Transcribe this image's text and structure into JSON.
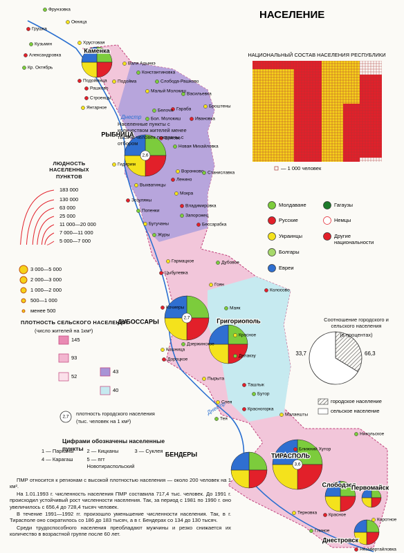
{
  "title": "НАСЕЛЕНИЕ",
  "national_composition": {
    "title": "НАЦИОНАЛЬНЫЙ СОСТАВ НАСЕЛЕНИЯ РЕСПУБЛИКИ",
    "unit_label": "— 1 000 человек"
  },
  "nationalities": [
    {
      "label": "Молдаване",
      "color": "#7ccc3c"
    },
    {
      "label": "Русские",
      "color": "#e2202a"
    },
    {
      "label": "Украинцы",
      "color": "#f4e21c"
    },
    {
      "label": "Болгары",
      "color": "#a6d86a"
    },
    {
      "label": "Евреи",
      "color": "#2f6fd0"
    },
    {
      "label": "Гагаузы",
      "color": "#1d7a2a"
    },
    {
      "label": "Немцы",
      "color": "#ffffff"
    },
    {
      "label": "Другие национальности",
      "color": "#e2202a"
    }
  ],
  "urban_rural": {
    "title": "Соотношение городского и сельского населения",
    "subtitle": "(в процентах)",
    "values": [
      33.7,
      66.3
    ],
    "value_labels": [
      "33,7",
      "66,3"
    ],
    "legend": [
      "городское население",
      "сельское население"
    ]
  },
  "settlement_size": {
    "title": "ЛЮДНОСТЬ НАСЕЛЕННЫХ ПУНКТОВ",
    "large": [
      "183 000",
      "130 000",
      "63 000",
      "25 000",
      "11 000—20 000",
      "7 000—11 000",
      "5 000—7 000"
    ],
    "small": [
      "3 000—5 000",
      "2 000—3 000",
      "1 000—2 000",
      "500—1 000",
      "менее 500"
    ]
  },
  "density": {
    "title": "ПЛОТНОСТЬ СЕЛЬСКОГО НАСЕЛЕНИЯ",
    "subtitle": "(число жителей на 1км²)",
    "classes": [
      145,
      93,
      52,
      43,
      40
    ],
    "urban_example": "2,7",
    "urban_label": "плотность городского населения",
    "urban_subtitle": "(тыс. человек на 1 км²)"
  },
  "numbered": {
    "title": "Цифрами обозначены населенные пункты",
    "items": [
      "1 — Парканы",
      "2 — Кицканы",
      "3 — Суклея",
      "4 — Карагаш",
      "5 — пгт Новотираспольский"
    ]
  },
  "note": "Населенные пункты с количеством жителей менее тысячи человек показаны с отбором",
  "river": "Днестр",
  "text": [
    "ПМР относится к регионам с высокой плотностью населения — около 200 человек на 1 км².",
    "На 1.01.1993 г. численность населения ПМР составила 717,4 тыс. человек. До 1991 г. происходил устойчивый рост численности населения. Так, за период с 1981 по 1990 г. оно увеличилось с 656,4 до 728,4 тысяч человек.",
    "В течение 1991—1992 гг. произошло уменьшение численности населения. Так, в г. Тирасполе оно сократилось со 186 до 183 тысяч, а в г. Бендерах со 134 до 130 тысяч.",
    "Среди трудоспособного населения преобладают мужчины и резко снижается их количество в возрастной группе после 60 лет."
  ],
  "cities": [
    {
      "label": "Каменка"
    },
    {
      "label": "РЫБНИЦА",
      "density": "2,6"
    },
    {
      "label": "ДУБОССАРЫ",
      "density": "2,7"
    },
    {
      "label": "Григориополь"
    },
    {
      "label": "БЕНДЕРЫ"
    },
    {
      "label": "ТИРАСПОЛЬ",
      "density": "3,6"
    },
    {
      "label": "Слободзея"
    },
    {
      "label": "Первомайск"
    },
    {
      "label": "Днестровск"
    }
  ],
  "villages": [
    "Фрунзовка",
    "Окница",
    "Грушка",
    "Кузьмин",
    "Хрустовая",
    "Александровка",
    "Кр. Октябрь",
    "Валя Адынкэ",
    "Подоймица",
    "Константиновка",
    "Подойма",
    "Рашково",
    "Слобода-Рашково",
    "Малый Молокиш",
    "Строенцы",
    "Васильевка",
    "Янтарное",
    "Гараба",
    "Белочи",
    "Броштены",
    "Ивановка",
    "Бол. Молокиш",
    "Гидирим",
    "Ержово",
    "Новая Михайловка",
    "Выхватинцы",
    "Зозуляны",
    "Попенки",
    "Воронково",
    "Ленино",
    "Станиславка",
    "Мокра",
    "Владимировка",
    "Запорожец",
    "Бутучаны",
    "Бессарабка",
    "Журы",
    "Гармацкое",
    "Цыбулевка",
    "Дубовое",
    "Гоян",
    "Кочиеры",
    "Маяк",
    "Красное",
    "Колосово",
    "Дзержинское",
    "Кошница",
    "Дороцкое",
    "Делакэу",
    "Пырыта",
    "Ташлык",
    "Бутор",
    "Спея",
    "Красногорка",
    "Тея",
    "Малаешты",
    "Ближний Хутор",
    "Никольское",
    "Терновка",
    "Красное",
    "Глиное",
    "Коротное",
    "Незавертайловка"
  ]
}
